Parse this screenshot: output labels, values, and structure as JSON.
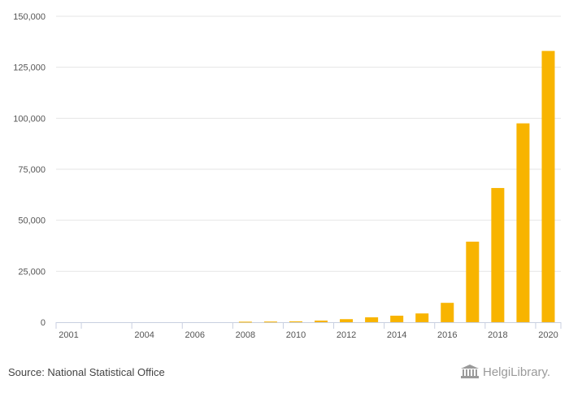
{
  "chart_data": {
    "type": "bar",
    "categories": [
      "2001",
      "2002",
      "2003",
      "2004",
      "2005",
      "2006",
      "2007",
      "2008",
      "2009",
      "2010",
      "2011",
      "2012",
      "2013",
      "2014",
      "2015",
      "2016",
      "2017",
      "2018",
      "2019",
      "2020"
    ],
    "x_tick_labels": [
      "2001",
      "",
      "",
      "2004",
      "",
      "2006",
      "",
      "2008",
      "",
      "2010",
      "",
      "2012",
      "",
      "2014",
      "",
      "2016",
      "",
      "2018",
      "",
      "2020"
    ],
    "values": [
      0,
      0,
      0,
      0,
      0,
      0,
      0,
      250,
      320,
      400,
      800,
      1500,
      2400,
      3200,
      4300,
      9500,
      39500,
      65800,
      97500,
      133000
    ],
    "ylim": [
      0,
      150000
    ],
    "yticks": [
      0,
      25000,
      50000,
      75000,
      100000,
      125000,
      150000
    ],
    "ytick_labels": [
      "0",
      "25,000",
      "50,000",
      "75,000",
      "100,000",
      "125,000",
      "150,000"
    ],
    "title": "",
    "xlabel": "",
    "ylabel": "",
    "bar_color": "#f8b400",
    "grid": true
  },
  "footer": {
    "source": "Source: National Statistical Office",
    "logo_text": "HelgiLibrary."
  }
}
